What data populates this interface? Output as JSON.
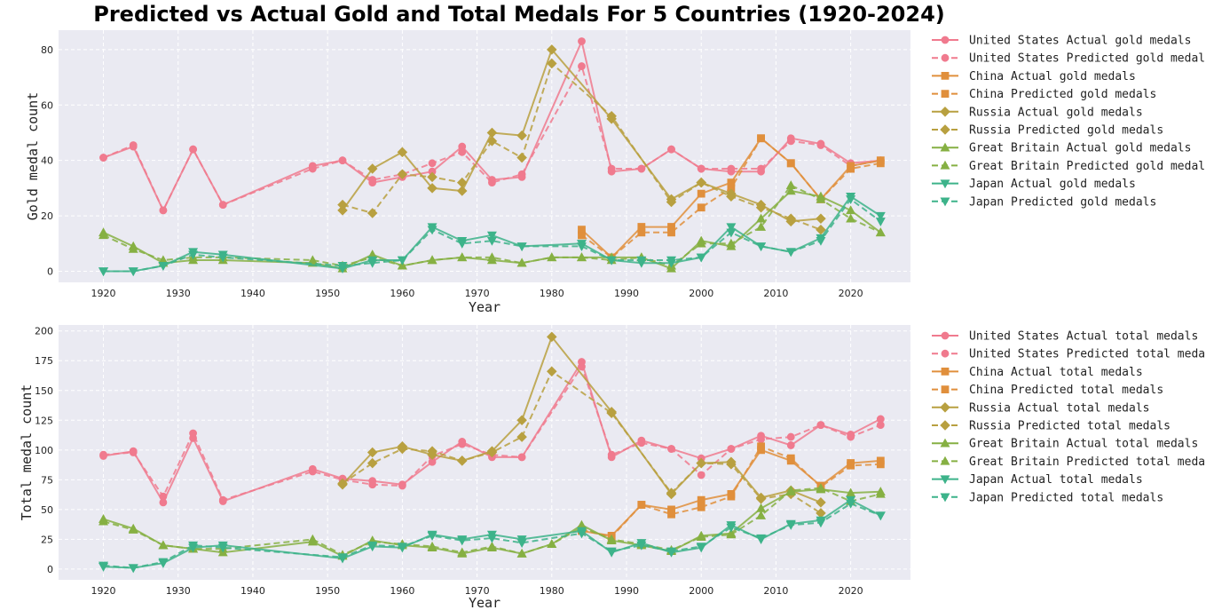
{
  "title": "Predicted vs Actual Gold and Total Medals For 5 Countries (1920-2024)",
  "colors": {
    "United States": "#f07a8e",
    "China": "#e08f3c",
    "Russia": "#b8a040",
    "Great Britain": "#86b043",
    "Japan": "#3db38a",
    "plot_bg": "#eaeaf2",
    "grid": "#ffffff"
  },
  "chart_data": [
    {
      "type": "line",
      "id": "gold",
      "xlabel": "Year",
      "ylabel": "Gold medal count",
      "xlim": [
        1914,
        2028
      ],
      "ylim": [
        -4,
        87
      ],
      "xticks": [
        1920,
        1930,
        1940,
        1950,
        1960,
        1970,
        1980,
        1990,
        2000,
        2010,
        2020
      ],
      "yticks": [
        0,
        20,
        40,
        60,
        80
      ],
      "legend_position": "outside-right",
      "series": [
        {
          "name": "United States Actual gold medals",
          "country": "United States",
          "style": "solid",
          "marker": "circle",
          "x": [
            1920,
            1924,
            1928,
            1932,
            1936,
            1948,
            1952,
            1956,
            1960,
            1964,
            1968,
            1972,
            1976,
            1984,
            1988,
            1992,
            1996,
            2000,
            2004,
            2008,
            2012,
            2016,
            2020,
            2024
          ],
          "y": [
            41,
            45,
            22,
            44,
            24,
            38,
            40,
            32,
            34,
            36,
            45,
            33,
            34,
            83,
            36,
            37,
            44,
            37,
            36,
            36,
            48,
            46,
            39,
            40
          ]
        },
        {
          "name": "United States Predicted gold medals",
          "country": "United States",
          "style": "dashed",
          "marker": "circle",
          "x": [
            1920,
            1924,
            1928,
            1932,
            1936,
            1948,
            1952,
            1956,
            1960,
            1964,
            1968,
            1972,
            1976,
            1984,
            1988,
            1992,
            1996,
            2000,
            2004,
            2008,
            2012,
            2016,
            2020,
            2024
          ],
          "y": [
            41,
            45.5,
            22,
            44,
            24,
            37,
            40,
            33,
            35,
            39,
            43,
            32,
            35,
            74,
            37,
            37,
            44,
            37,
            37,
            37,
            47,
            45.5,
            38,
            40
          ]
        },
        {
          "name": "China Actual gold medals",
          "country": "China",
          "style": "solid",
          "marker": "square",
          "x": [
            1984,
            1988,
            1992,
            1996,
            2000,
            2004,
            2008,
            2012,
            2016,
            2020,
            2024
          ],
          "y": [
            15,
            5,
            16,
            16,
            28,
            32,
            48,
            39,
            26,
            38,
            40
          ]
        },
        {
          "name": "China Predicted gold medals",
          "country": "China",
          "style": "dashed",
          "marker": "square",
          "x": [
            1984,
            1988,
            1992,
            1996,
            2000,
            2004,
            2008,
            2012,
            2016,
            2020,
            2024
          ],
          "y": [
            13,
            5,
            14,
            14,
            23,
            30,
            48,
            39,
            26,
            37,
            39
          ]
        },
        {
          "name": "Russia Actual gold medals",
          "country": "Russia",
          "style": "solid",
          "marker": "diamond",
          "x": [
            1952,
            1956,
            1960,
            1964,
            1968,
            1972,
            1976,
            1980,
            1988,
            1996,
            2000,
            2004,
            2008,
            2012,
            2016
          ],
          "y": [
            22,
            37,
            43,
            30,
            29,
            50,
            49,
            80,
            55,
            26,
            32,
            28,
            24,
            18,
            19
          ]
        },
        {
          "name": "Russia Predicted gold medals",
          "country": "Russia",
          "style": "dashed",
          "marker": "diamond",
          "x": [
            1952,
            1956,
            1960,
            1964,
            1968,
            1972,
            1976,
            1980,
            1988,
            1996,
            2000,
            2004,
            2008,
            2012,
            2016
          ],
          "y": [
            24,
            21,
            35,
            34,
            32,
            47,
            41,
            75,
            56,
            25,
            32,
            27,
            23,
            19,
            15
          ]
        },
        {
          "name": "Great Britain Actual gold medals",
          "country": "Great Britain",
          "style": "solid",
          "marker": "triangle-up",
          "x": [
            1920,
            1924,
            1928,
            1932,
            1936,
            1948,
            1952,
            1956,
            1960,
            1964,
            1968,
            1972,
            1976,
            1980,
            1984,
            1988,
            1992,
            1996,
            2000,
            2004,
            2008,
            2012,
            2016,
            2020,
            2024
          ],
          "y": [
            14,
            9,
            3,
            4,
            4,
            3,
            1,
            6,
            2,
            4,
            5,
            4,
            3,
            5,
            5,
            5,
            5,
            1,
            11,
            9,
            19,
            29,
            27,
            22,
            14
          ]
        },
        {
          "name": "Great Britain Predicted gold medals",
          "country": "Great Britain",
          "style": "dashed",
          "marker": "triangle-up",
          "x": [
            1920,
            1924,
            1928,
            1932,
            1936,
            1948,
            1952,
            1956,
            1960,
            1964,
            1968,
            1972,
            1976,
            1980,
            1984,
            1988,
            1992,
            1996,
            2000,
            2004,
            2008,
            2012,
            2016,
            2020,
            2024
          ],
          "y": [
            13,
            8,
            4,
            5,
            5,
            4,
            2,
            5,
            2,
            4,
            5,
            5,
            3,
            5,
            5,
            4,
            5,
            2,
            10,
            10,
            16,
            31,
            26,
            19,
            14
          ]
        },
        {
          "name": "Japan Actual gold medals",
          "country": "Japan",
          "style": "solid",
          "marker": "triangle-down",
          "x": [
            1920,
            1924,
            1928,
            1932,
            1936,
            1952,
            1956,
            1960,
            1964,
            1968,
            1972,
            1976,
            1984,
            1988,
            1992,
            1996,
            2000,
            2004,
            2008,
            2012,
            2016,
            2020,
            2024
          ],
          "y": [
            0,
            0,
            2,
            7,
            6,
            1,
            4,
            4,
            16,
            11,
            13,
            9,
            10,
            4,
            3,
            3,
            5,
            16,
            9,
            7,
            12,
            27,
            20
          ]
        },
        {
          "name": "Japan Predicted gold medals",
          "country": "Japan",
          "style": "dashed",
          "marker": "triangle-down",
          "x": [
            1920,
            1924,
            1928,
            1932,
            1936,
            1952,
            1956,
            1960,
            1964,
            1968,
            1972,
            1976,
            1984,
            1988,
            1992,
            1996,
            2000,
            2004,
            2008,
            2012,
            2016,
            2020,
            2024
          ],
          "y": [
            0,
            0,
            2,
            6,
            5,
            2,
            3,
            4,
            15,
            10,
            11,
            9,
            9,
            4,
            4,
            4,
            5,
            14,
            9,
            7,
            11,
            26,
            18
          ]
        }
      ]
    },
    {
      "type": "line",
      "id": "total",
      "xlabel": "Year",
      "ylabel": "Total medal count",
      "xlim": [
        1914,
        2028
      ],
      "ylim": [
        -9,
        205
      ],
      "xticks": [
        1920,
        1930,
        1940,
        1950,
        1960,
        1970,
        1980,
        1990,
        2000,
        2010,
        2020
      ],
      "yticks": [
        0,
        25,
        50,
        75,
        100,
        125,
        150,
        175,
        200
      ],
      "legend_position": "outside-right",
      "series": [
        {
          "name": "United States Actual total medals",
          "country": "United States",
          "style": "solid",
          "marker": "circle",
          "x": [
            1920,
            1924,
            1928,
            1932,
            1936,
            1948,
            1952,
            1956,
            1960,
            1964,
            1968,
            1972,
            1976,
            1984,
            1988,
            1992,
            1996,
            2000,
            2004,
            2008,
            2012,
            2016,
            2020,
            2024
          ],
          "y": [
            95,
            99,
            56,
            110,
            57,
            84,
            76,
            74,
            71,
            90,
            107,
            94,
            94,
            174,
            94,
            108,
            101,
            93,
            101,
            112,
            104,
            121,
            113,
            126
          ]
        },
        {
          "name": "United States Predicted total medals",
          "country": "United States",
          "style": "dashed",
          "marker": "circle",
          "x": [
            1920,
            1924,
            1928,
            1932,
            1936,
            1948,
            1952,
            1956,
            1960,
            1964,
            1968,
            1972,
            1976,
            1984,
            1988,
            1992,
            1996,
            2000,
            2004,
            2008,
            2012,
            2016,
            2020,
            2024
          ],
          "y": [
            96,
            98,
            61,
            114,
            58,
            82,
            75,
            71,
            70,
            95,
            105,
            96,
            94,
            170,
            96,
            106,
            101,
            79,
            101,
            109,
            111,
            121,
            111,
            121
          ]
        },
        {
          "name": "China Actual total medals",
          "country": "China",
          "style": "solid",
          "marker": "square",
          "x": [
            1984,
            1988,
            1992,
            1996,
            2000,
            2004,
            2008,
            2012,
            2016,
            2020,
            2024
          ],
          "y": [
            32,
            28,
            54,
            50,
            58,
            63,
            100,
            91,
            70,
            89,
            91
          ]
        },
        {
          "name": "China Predicted total medals",
          "country": "China",
          "style": "dashed",
          "marker": "square",
          "x": [
            1984,
            1988,
            1992,
            1996,
            2000,
            2004,
            2008,
            2012,
            2016,
            2020,
            2024
          ],
          "y": [
            33,
            27,
            54,
            46,
            52,
            61,
            103,
            93,
            69,
            87,
            88
          ]
        },
        {
          "name": "Russia Actual total medals",
          "country": "Russia",
          "style": "solid",
          "marker": "diamond",
          "x": [
            1952,
            1956,
            1960,
            1964,
            1968,
            1972,
            1976,
            1980,
            1988,
            1996,
            2000,
            2004,
            2008,
            2012,
            2016
          ],
          "y": [
            71,
            98,
            103,
            96,
            91,
            99,
            125,
            195,
            132,
            63,
            89,
            90,
            60,
            66,
            56
          ]
        },
        {
          "name": "Russia Predicted total medals",
          "country": "Russia",
          "style": "dashed",
          "marker": "diamond",
          "x": [
            1952,
            1956,
            1960,
            1964,
            1968,
            1972,
            1976,
            1980,
            1988,
            1996,
            2000,
            2004,
            2008,
            2012,
            2016
          ],
          "y": [
            72,
            89,
            101,
            99,
            91,
            98,
            111,
            166,
            131,
            64,
            89,
            88,
            59,
            63,
            47
          ]
        },
        {
          "name": "Great Britain Actual total medals",
          "country": "Great Britain",
          "style": "solid",
          "marker": "triangle-up",
          "x": [
            1920,
            1924,
            1928,
            1932,
            1936,
            1948,
            1952,
            1956,
            1960,
            1964,
            1968,
            1972,
            1976,
            1980,
            1984,
            1988,
            1992,
            1996,
            2000,
            2004,
            2008,
            2012,
            2016,
            2020,
            2024
          ],
          "y": [
            42,
            34,
            20,
            17,
            14,
            23,
            11,
            24,
            20,
            18,
            13,
            18,
            13,
            21,
            37,
            24,
            20,
            15,
            28,
            30,
            51,
            65,
            67,
            64,
            65
          ]
        },
        {
          "name": "Great Britain Predicted total medals",
          "country": "Great Britain",
          "style": "dashed",
          "marker": "triangle-up",
          "x": [
            1920,
            1924,
            1928,
            1932,
            1936,
            1948,
            1952,
            1956,
            1960,
            1964,
            1968,
            1972,
            1976,
            1980,
            1984,
            1988,
            1992,
            1996,
            2000,
            2004,
            2008,
            2012,
            2016,
            2020,
            2024
          ],
          "y": [
            40,
            33,
            20,
            17,
            17,
            25,
            12,
            23,
            21,
            19,
            14,
            19,
            13,
            21,
            35,
            25,
            21,
            16,
            27,
            29,
            45,
            66,
            68,
            57,
            63
          ]
        },
        {
          "name": "Japan Actual total medals",
          "country": "Japan",
          "style": "solid",
          "marker": "triangle-down",
          "x": [
            1920,
            1924,
            1928,
            1932,
            1936,
            1952,
            1956,
            1960,
            1964,
            1968,
            1972,
            1976,
            1984,
            1988,
            1992,
            1996,
            2000,
            2004,
            2008,
            2012,
            2016,
            2020,
            2024
          ],
          "y": [
            2,
            1,
            5,
            18,
            20,
            9,
            19,
            18,
            29,
            25,
            29,
            25,
            32,
            14,
            22,
            14,
            18,
            37,
            25,
            38,
            41,
            58,
            45
          ]
        },
        {
          "name": "Japan Predicted total medals",
          "country": "Japan",
          "style": "dashed",
          "marker": "triangle-down",
          "x": [
            1920,
            1924,
            1928,
            1932,
            1936,
            1952,
            1956,
            1960,
            1964,
            1968,
            1972,
            1976,
            1984,
            1988,
            1992,
            1996,
            2000,
            2004,
            2008,
            2012,
            2016,
            2020,
            2024
          ],
          "y": [
            3,
            1,
            6,
            20,
            18,
            10,
            20,
            19,
            28,
            24,
            26,
            22,
            30,
            15,
            20,
            15,
            19,
            35,
            26,
            37,
            39,
            55,
            45
          ]
        }
      ]
    }
  ]
}
